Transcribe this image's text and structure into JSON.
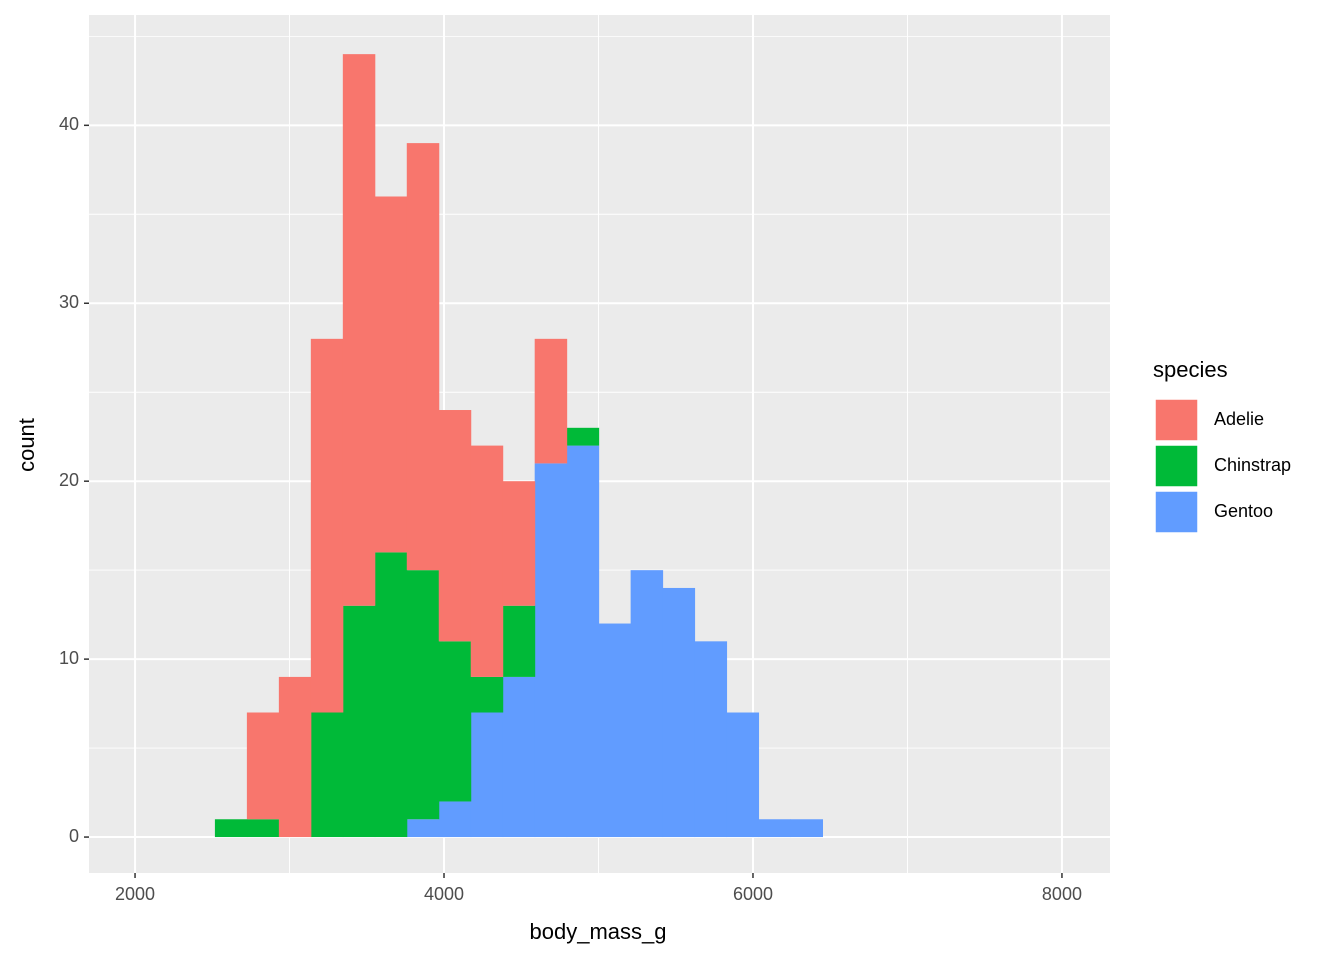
{
  "chart_data": {
    "type": "histogram",
    "stacked": true,
    "x_label": "body_mass_g",
    "y_label": "count",
    "legend_title": "species",
    "bins": [
      2517,
      2724,
      2931,
      3138,
      3345,
      3552,
      3759,
      3966,
      4173,
      4380,
      4587,
      4794,
      5001,
      5208,
      5415,
      5622,
      5829,
      6036,
      6243,
      6450
    ],
    "series": [
      {
        "name": "Adelie",
        "color": "#F8766D",
        "values": [
          0,
          6,
          9,
          21,
          31,
          20,
          24,
          13,
          13,
          7,
          7,
          0,
          0,
          0,
          0,
          0,
          0,
          0,
          0
        ]
      },
      {
        "name": "Chinstrap",
        "color": "#00BA38",
        "values": [
          1,
          1,
          0,
          7,
          13,
          16,
          14,
          9,
          2,
          4,
          0,
          1,
          0,
          0,
          0,
          0,
          0,
          0,
          0
        ]
      },
      {
        "name": "Gentoo",
        "color": "#619CFF",
        "values": [
          0,
          0,
          0,
          0,
          0,
          0,
          1,
          2,
          7,
          9,
          21,
          22,
          12,
          15,
          14,
          11,
          7,
          1,
          1
        ]
      }
    ],
    "xlim": [
      1702,
      8311
    ],
    "ylim": [
      -2.02,
      46.2
    ],
    "xticks": [
      2000,
      4000,
      6000,
      8000
    ],
    "yticks": [
      0,
      10,
      20,
      30,
      40
    ],
    "grid": true,
    "legend_position": "right"
  }
}
